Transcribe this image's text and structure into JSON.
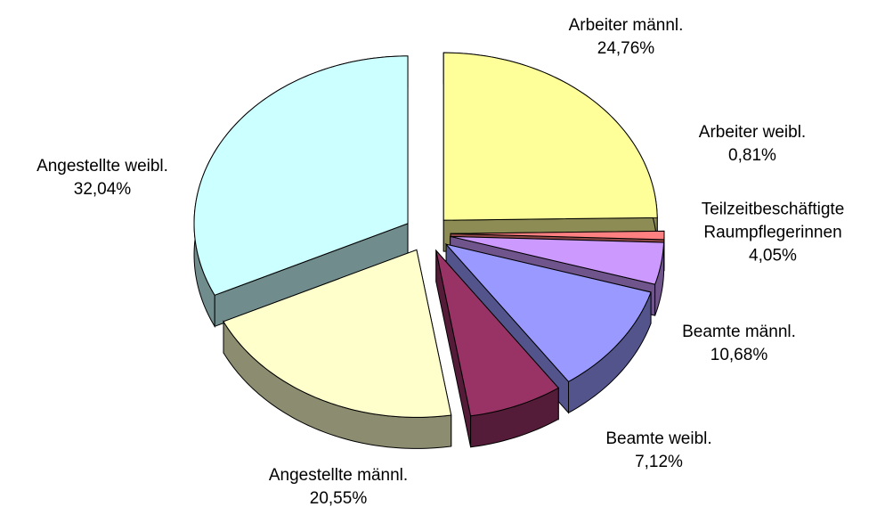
{
  "chart_data": {
    "type": "pie3d",
    "categories": [
      "Arbeiter männl.",
      "Arbeiter weibl.",
      "Teilzeitbeschäftigte Raumpflegerinnen",
      "Beamte männl.",
      "Beamte weibl.",
      "Angestellte männl.",
      "Angestellte weibl."
    ],
    "values": [
      24.76,
      0.81,
      4.05,
      10.68,
      7.12,
      20.55,
      32.04
    ],
    "value_labels": [
      "24,76%",
      "0,81%",
      "4,05%",
      "10,68%",
      "7,12%",
      "20,55%",
      "32,04%"
    ],
    "colors": [
      "#ffff99",
      "#ff8080",
      "#cc99ff",
      "#9999ff",
      "#993366",
      "#ffffcc",
      "#ccffff"
    ]
  }
}
